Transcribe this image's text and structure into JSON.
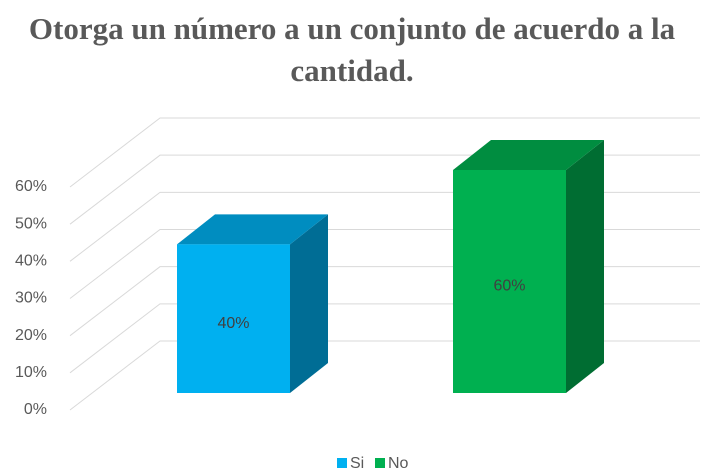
{
  "chart_data": {
    "type": "bar3d",
    "title": "Otorga un número a un conjunto de acuerdo a la cantidad.",
    "categories": [
      "Si",
      "No"
    ],
    "values": [
      40,
      60
    ],
    "value_labels": [
      "40%",
      "60%"
    ],
    "colors": [
      "#00b0f0",
      "#00b050"
    ],
    "ylim": [
      0,
      60
    ],
    "yticks": [
      {
        "value": 0,
        "label": "0%"
      },
      {
        "value": 10,
        "label": "10%"
      },
      {
        "value": 20,
        "label": "20%"
      },
      {
        "value": 30,
        "label": "30%"
      },
      {
        "value": 40,
        "label": "40%"
      },
      {
        "value": 50,
        "label": "50%"
      },
      {
        "value": 60,
        "label": "60%"
      }
    ],
    "grid": true,
    "legend": "bottom"
  }
}
